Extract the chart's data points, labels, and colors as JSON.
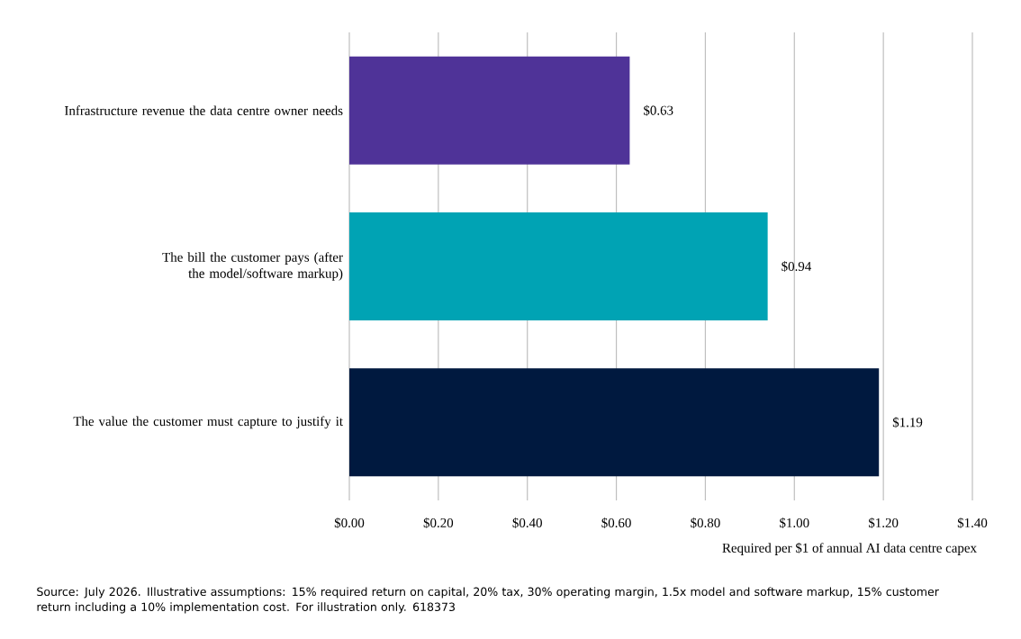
{
  "chart_data": {
    "type": "bar",
    "orientation": "horizontal",
    "categories": [
      "Infrastructure revenue the data centre owner needs",
      "The bill the customer pays (after the model/software markup)",
      "The value the customer must capture to justify it"
    ],
    "values": [
      0.63,
      0.94,
      1.19
    ],
    "colors": [
      "#4f3398",
      "#00a3b4",
      "#00193f"
    ],
    "value_labels": [
      "$0.63",
      "$0.94",
      "$1.19"
    ],
    "xlabel": "Required per $1 of annual AI data centre capex",
    "xlim": [
      0,
      1.4
    ],
    "xticks": [
      {
        "value": 0,
        "label": "$0.00"
      },
      {
        "value": 0.2,
        "label": "$0.20"
      },
      {
        "value": 0.4,
        "label": "$0.40"
      },
      {
        "value": 0.6,
        "label": "$0.60"
      },
      {
        "value": 0.8,
        "label": "$0.80"
      },
      {
        "value": 1.0,
        "label": "$1.00"
      },
      {
        "value": 1.2,
        "label": "$1.20"
      },
      {
        "value": 1.4,
        "label": "$1.40"
      }
    ],
    "grid": "x",
    "annotations": [
      "Source: July 2026. Illustrative assumptions: 15% required return on capital, 20% tax, 30% operating margin, 1.5x model and software markup, 15% customer return including a 10% implementation cost. For illustration only. 618373"
    ]
  }
}
